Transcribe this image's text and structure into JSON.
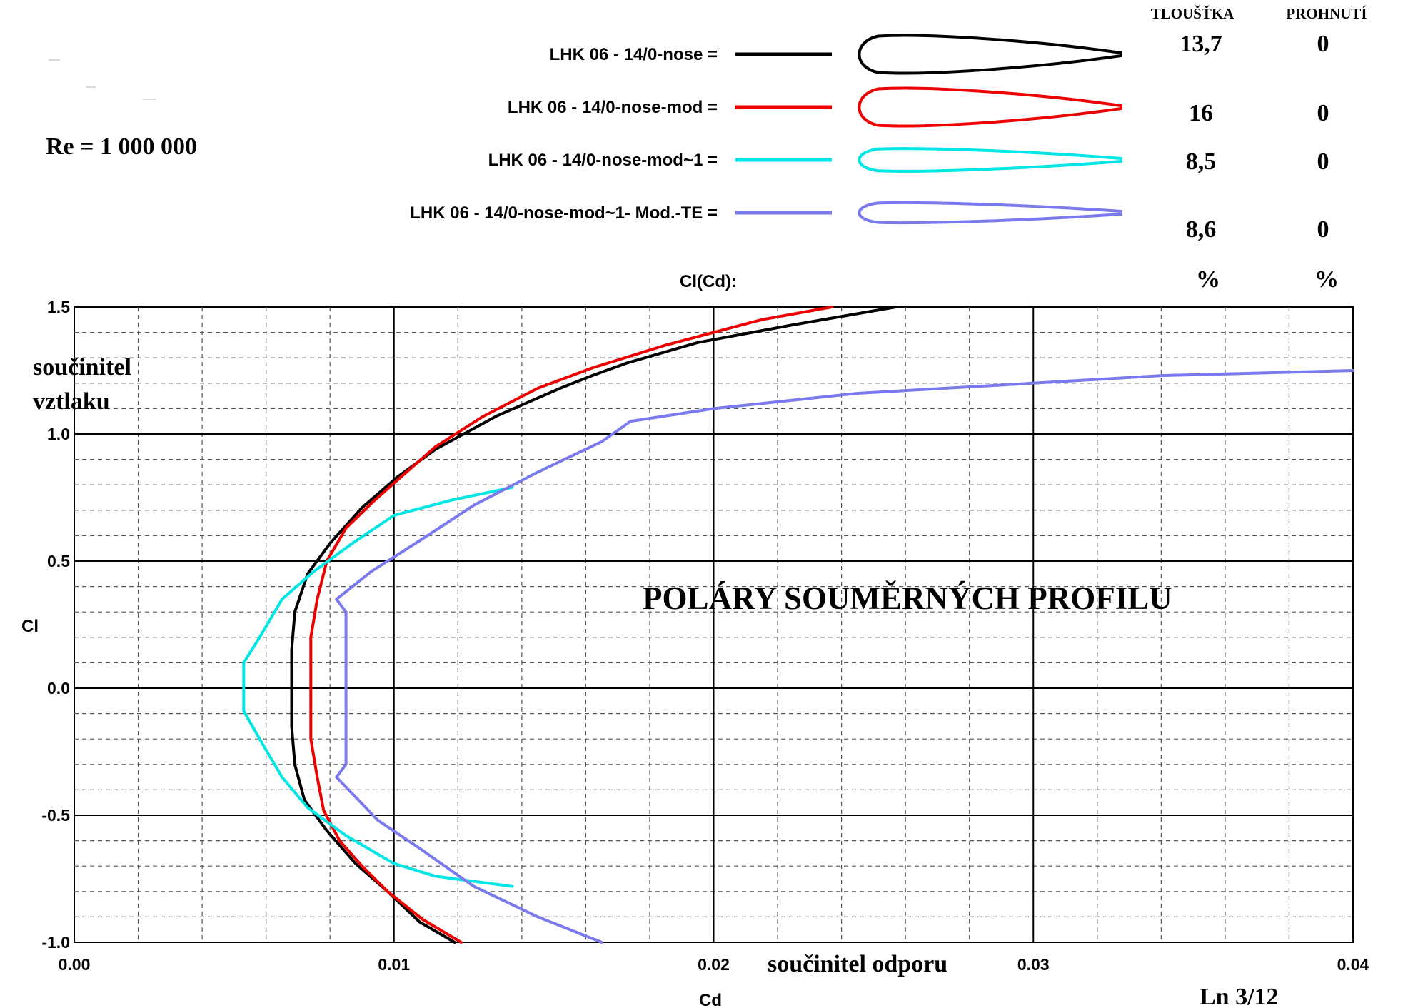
{
  "chart_data": {
    "type": "line",
    "title": "POLÁRY SOUMĚRNÝCH PROFILU",
    "plot_label": "Cl(Cd):",
    "xlabel": "Cd",
    "ylabel": "Cl",
    "x_caption": "součinitel odporu",
    "y_caption_line1": "součinitel",
    "y_caption_line2": "vztlaku",
    "reynolds": "Re = 1 000 000",
    "page_ref": "Ln 3/12",
    "xlim": [
      0.0,
      0.04
    ],
    "ylim": [
      -1.0,
      1.5
    ],
    "x_ticks": [
      "0.00",
      "0.01",
      "0.02",
      "0.03",
      "0.04"
    ],
    "y_ticks": [
      "1.5",
      "1.0",
      "0.5",
      "0.0",
      "-0.5",
      "-1.0"
    ],
    "grid": true,
    "table_header": {
      "thickness": "TLOUŠŤKA",
      "camber": "PROHNUTÍ"
    },
    "table_units": {
      "thickness": "%",
      "camber": "%"
    },
    "series": [
      {
        "name": "LHK   06  -  14/0-nose =",
        "color": "#000000",
        "thickness": "13,7",
        "camber": "0",
        "points": [
          [
            0.0119,
            -1.0
          ],
          [
            0.0108,
            -0.92
          ],
          [
            0.0098,
            -0.8
          ],
          [
            0.0088,
            -0.69
          ],
          [
            0.0079,
            -0.56
          ],
          [
            0.0072,
            -0.44
          ],
          [
            0.0069,
            -0.3
          ],
          [
            0.0068,
            -0.15
          ],
          [
            0.0068,
            0.0
          ],
          [
            0.0068,
            0.15
          ],
          [
            0.0069,
            0.3
          ],
          [
            0.0073,
            0.45
          ],
          [
            0.008,
            0.57
          ],
          [
            0.009,
            0.71
          ],
          [
            0.0101,
            0.83
          ],
          [
            0.0113,
            0.94
          ],
          [
            0.0132,
            1.07
          ],
          [
            0.0152,
            1.18
          ],
          [
            0.0162,
            1.23
          ],
          [
            0.0173,
            1.28
          ],
          [
            0.0195,
            1.36
          ],
          [
            0.0225,
            1.43
          ],
          [
            0.0257,
            1.5
          ]
        ]
      },
      {
        "name": "LHK   06  -  14/0-nose-mod =",
        "color": "#ee0000",
        "thickness": "16",
        "camber": "0",
        "points": [
          [
            0.0121,
            -1.0
          ],
          [
            0.0109,
            -0.91
          ],
          [
            0.0098,
            -0.8
          ],
          [
            0.009,
            -0.7
          ],
          [
            0.0083,
            -0.6
          ],
          [
            0.0078,
            -0.48
          ],
          [
            0.0076,
            -0.35
          ],
          [
            0.0074,
            -0.2
          ],
          [
            0.0074,
            0.0
          ],
          [
            0.0074,
            0.2
          ],
          [
            0.0076,
            0.35
          ],
          [
            0.0079,
            0.5
          ],
          [
            0.0085,
            0.63
          ],
          [
            0.0094,
            0.74
          ],
          [
            0.0103,
            0.84
          ],
          [
            0.0113,
            0.95
          ],
          [
            0.0128,
            1.07
          ],
          [
            0.0145,
            1.18
          ],
          [
            0.0162,
            1.26
          ],
          [
            0.0185,
            1.35
          ],
          [
            0.0215,
            1.45
          ],
          [
            0.0237,
            1.5
          ]
        ]
      },
      {
        "name": "LHK   06  -  14/0-nose-mod~1 =",
        "color": "#00e5e5",
        "thickness": "8,5",
        "camber": "0",
        "points": [
          [
            0.0137,
            -0.78
          ],
          [
            0.0113,
            -0.74
          ],
          [
            0.01,
            -0.69
          ],
          [
            0.0085,
            -0.58
          ],
          [
            0.0073,
            -0.47
          ],
          [
            0.0065,
            -0.35
          ],
          [
            0.0058,
            -0.2
          ],
          [
            0.0053,
            -0.09
          ],
          [
            0.0053,
            0.0
          ],
          [
            0.0053,
            0.1
          ],
          [
            0.0058,
            0.2
          ],
          [
            0.0065,
            0.35
          ],
          [
            0.0075,
            0.46
          ],
          [
            0.0087,
            0.57
          ],
          [
            0.01,
            0.68
          ],
          [
            0.0118,
            0.74
          ],
          [
            0.0137,
            0.79
          ]
        ]
      },
      {
        "name": "LHK   06  -  14/0-nose-mod~1- Mod.-TE =",
        "color": "#7a7aee",
        "thickness": "8,6",
        "camber": "0",
        "points": [
          [
            0.0165,
            -1.0
          ],
          [
            0.0145,
            -0.9
          ],
          [
            0.0125,
            -0.78
          ],
          [
            0.0108,
            -0.63
          ],
          [
            0.0095,
            -0.52
          ],
          [
            0.0082,
            -0.35
          ],
          [
            0.0085,
            -0.3
          ],
          [
            0.0085,
            0.0
          ],
          [
            0.0085,
            0.3
          ],
          [
            0.0082,
            0.35
          ],
          [
            0.0093,
            0.46
          ],
          [
            0.0108,
            0.58
          ],
          [
            0.0125,
            0.72
          ],
          [
            0.0145,
            0.85
          ],
          [
            0.0165,
            0.97
          ],
          [
            0.0174,
            1.05
          ],
          [
            0.02,
            1.1
          ],
          [
            0.0245,
            1.16
          ],
          [
            0.03,
            1.2
          ],
          [
            0.034,
            1.23
          ],
          [
            0.04,
            1.25
          ]
        ]
      }
    ]
  }
}
